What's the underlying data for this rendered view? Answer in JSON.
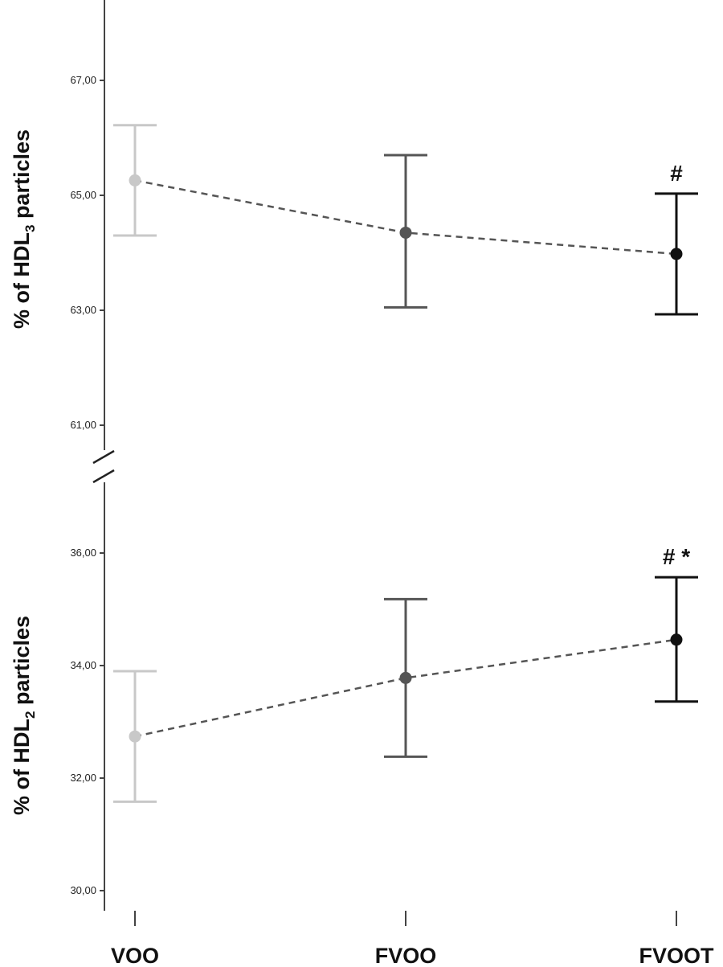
{
  "chart_data": [
    {
      "type": "scatter",
      "panel": "top",
      "ylabel": {
        "main": "% of  HDL",
        "sub": "3",
        "tail": " particles"
      },
      "categories": [
        "VOO",
        "FVOO",
        "FVOOT"
      ],
      "yticks": [
        "61,00",
        "63,00",
        "65,00",
        "67,00"
      ],
      "yrange": [
        60.0,
        68.0
      ],
      "series": [
        {
          "points": [
            {
              "category": "VOO",
              "mean": 65.26,
              "lower": 64.3,
              "upper": 66.22,
              "color": "#c8c8c8"
            },
            {
              "category": "FVOO",
              "mean": 64.35,
              "lower": 63.05,
              "upper": 65.7,
              "color": "#555555"
            },
            {
              "category": "FVOOT",
              "mean": 63.98,
              "lower": 62.93,
              "upper": 65.03,
              "color": "#111111"
            }
          ]
        }
      ],
      "annotations": [
        {
          "category": "FVOOT",
          "text": "#"
        }
      ]
    },
    {
      "type": "scatter",
      "panel": "bottom",
      "ylabel": {
        "main": "% of HDL",
        "sub": "2",
        "tail": " particles"
      },
      "categories": [
        "VOO",
        "FVOO",
        "FVOOT"
      ],
      "yticks": [
        "30,00",
        "32,00",
        "34,00",
        "36,00"
      ],
      "yrange": [
        29.7,
        37.1
      ],
      "series": [
        {
          "points": [
            {
              "category": "VOO",
              "mean": 32.74,
              "lower": 31.58,
              "upper": 33.9,
              "color": "#c8c8c8"
            },
            {
              "category": "FVOO",
              "mean": 33.78,
              "lower": 32.38,
              "upper": 35.18,
              "color": "#555555"
            },
            {
              "category": "FVOOT",
              "mean": 34.46,
              "lower": 33.36,
              "upper": 35.57,
              "color": "#111111"
            }
          ]
        }
      ],
      "annotations": [
        {
          "category": "FVOOT",
          "text": "#  *"
        }
      ]
    }
  ]
}
